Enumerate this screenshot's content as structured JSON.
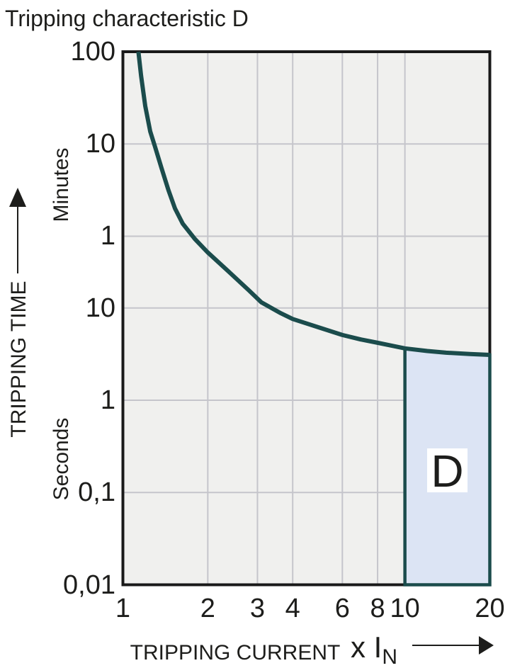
{
  "title": "Tripping characteristic D",
  "colors": {
    "page_bg": "#ffffff",
    "plot_bg": "#f0f0ee",
    "gridline": "#c5c5cb",
    "plot_border": "#191919",
    "curve": "#1b4c4c",
    "region_fill": "#dce4f4",
    "region_border": "#1b4c4c",
    "region_label_bg": "#ffffff",
    "text": "#1d1d1b"
  },
  "chart_data": {
    "type": "line",
    "title": "Tripping characteristic D",
    "grid": "on",
    "x_axis": {
      "label": "TRIPPING CURRENT",
      "unit_suffix": "x I",
      "unit_subscript": "N",
      "scale": "log",
      "range": [
        1,
        20
      ],
      "ticks": [
        {
          "label": "1",
          "value": 1
        },
        {
          "label": "2",
          "value": 2
        },
        {
          "label": "3",
          "value": 3
        },
        {
          "label": "4",
          "value": 4
        },
        {
          "label": "6",
          "value": 6
        },
        {
          "label": "8",
          "value": 8
        },
        {
          "label": "10",
          "value": 10
        },
        {
          "label": "20",
          "value": 20
        }
      ],
      "gridlines_at": [
        2,
        3,
        4,
        6,
        8,
        10
      ]
    },
    "y_axis": {
      "label": "TRIPPING TIME",
      "unit_top": "Minutes",
      "unit_bottom": "Seconds",
      "scale": "log",
      "range_seconds": [
        0.01,
        6000
      ],
      "ticks": [
        {
          "label": "100",
          "seconds": 6000,
          "unit": "minutes"
        },
        {
          "label": "10",
          "seconds": 600,
          "unit": "minutes"
        },
        {
          "label": "1",
          "seconds": 60,
          "unit": "minutes"
        },
        {
          "label": "10",
          "seconds": 10,
          "unit": "seconds"
        },
        {
          "label": "1",
          "seconds": 1,
          "unit": "seconds"
        },
        {
          "label": "0,1",
          "seconds": 0.1,
          "unit": "seconds"
        },
        {
          "label": "0,01",
          "seconds": 0.01,
          "unit": "seconds"
        }
      ],
      "gridlines_at_seconds": [
        600,
        60,
        10,
        1,
        0.1
      ]
    },
    "series": [
      {
        "name": "tripping-curve",
        "points_current_multiple_vs_seconds": [
          [
            1.135,
            6000
          ],
          [
            1.16,
            3300
          ],
          [
            1.2,
            1550
          ],
          [
            1.25,
            820
          ],
          [
            1.3,
            560
          ],
          [
            1.37,
            330
          ],
          [
            1.45,
            190
          ],
          [
            1.53,
            120
          ],
          [
            1.63,
            82
          ],
          [
            1.8,
            56
          ],
          [
            2.0,
            40
          ],
          [
            2.4,
            24
          ],
          [
            2.8,
            15.5
          ],
          [
            3.1,
            11.5
          ],
          [
            3.6,
            8.9
          ],
          [
            4.0,
            7.6
          ],
          [
            5.0,
            6.1
          ],
          [
            6.0,
            5.1
          ],
          [
            7.0,
            4.55
          ],
          [
            8.0,
            4.2
          ],
          [
            9.0,
            3.9
          ],
          [
            10.0,
            3.65
          ],
          [
            12.0,
            3.42
          ],
          [
            14.0,
            3.28
          ],
          [
            17.0,
            3.17
          ],
          [
            20.0,
            3.1
          ]
        ]
      }
    ],
    "region": {
      "label": "D",
      "x_from": 10,
      "x_to": 20,
      "t_bottom_seconds": 0.01,
      "top_boundary": "curve"
    }
  }
}
